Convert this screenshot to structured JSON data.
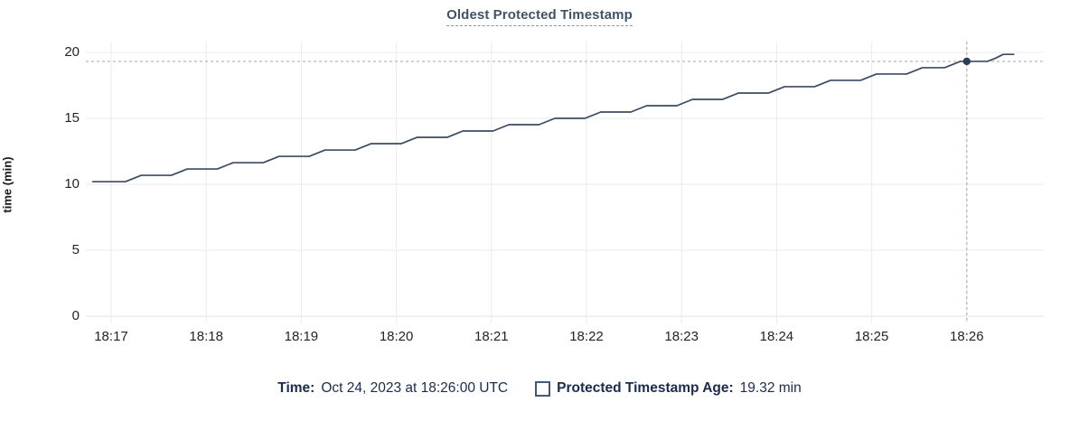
{
  "title": {
    "text": "Oldest Protected Timestamp"
  },
  "colors": {
    "title": "#415368",
    "line": "#3c4a63",
    "dot": "#2e3c55",
    "crosshair": "#a3b5bf",
    "grid": "#ebebeb",
    "axis": "#e2e2e2",
    "tick_text": "#242424",
    "legend_text": "#1b2b4c",
    "swatch_border": "#475872"
  },
  "y_axis": {
    "label": "time (min)",
    "ticks": [
      0,
      5,
      10,
      15,
      20
    ]
  },
  "x_axis": {
    "tick_labels": [
      "18:17",
      "18:18",
      "18:19",
      "18:20",
      "18:21",
      "18:22",
      "18:23",
      "18:24",
      "18:25",
      "18:26"
    ]
  },
  "tooltip": {
    "time_label": "Time:",
    "time_value": "Oct 24, 2023 at 18:26:00 UTC",
    "series_label": "Protected Timestamp Age:",
    "series_value": "19.32 min"
  },
  "chart_data": {
    "type": "line",
    "title": "Oldest Protected Timestamp",
    "ylabel": "time (min)",
    "ylim": [
      0,
      20
    ],
    "y_ticks": [
      0,
      5,
      10,
      15,
      20
    ],
    "x_tick_labels": [
      "18:17",
      "18:18",
      "18:19",
      "18:20",
      "18:21",
      "18:22",
      "18:23",
      "18:24",
      "18:25",
      "18:26"
    ],
    "x_unit": "seconds relative to 18:17:00",
    "x_tick_seconds": [
      0,
      60,
      120,
      180,
      240,
      300,
      360,
      420,
      480,
      540
    ],
    "xlim": [
      -16,
      589
    ],
    "grid": true,
    "legend_position": "bottom",
    "series": [
      {
        "name": "Protected Timestamp Age",
        "unit": "min",
        "points": [
          [
            -12,
            10.2
          ],
          [
            9,
            10.2
          ],
          [
            19,
            10.68
          ],
          [
            38,
            10.68
          ],
          [
            48,
            11.16
          ],
          [
            67,
            11.16
          ],
          [
            77,
            11.64
          ],
          [
            96,
            11.64
          ],
          [
            106,
            12.12
          ],
          [
            125,
            12.12
          ],
          [
            135,
            12.6
          ],
          [
            154,
            12.6
          ],
          [
            164,
            13.08
          ],
          [
            183,
            13.08
          ],
          [
            193,
            13.56
          ],
          [
            212,
            13.56
          ],
          [
            222,
            14.04
          ],
          [
            241,
            14.04
          ],
          [
            251,
            14.52
          ],
          [
            270,
            14.52
          ],
          [
            280,
            15.0
          ],
          [
            299,
            15.0
          ],
          [
            309,
            15.48
          ],
          [
            328,
            15.48
          ],
          [
            338,
            15.96
          ],
          [
            357,
            15.96
          ],
          [
            367,
            16.44
          ],
          [
            386,
            16.44
          ],
          [
            396,
            16.92
          ],
          [
            415,
            16.92
          ],
          [
            425,
            17.4
          ],
          [
            444,
            17.4
          ],
          [
            454,
            17.88
          ],
          [
            473,
            17.88
          ],
          [
            483,
            18.36
          ],
          [
            502,
            18.36
          ],
          [
            512,
            18.84
          ],
          [
            526,
            18.84
          ],
          [
            531,
            19.08
          ],
          [
            536,
            19.32
          ],
          [
            553,
            19.32
          ],
          [
            558,
            19.55
          ],
          [
            563,
            19.85
          ],
          [
            570,
            19.85
          ]
        ]
      }
    ],
    "hover_point": {
      "t_seconds": 540,
      "time": "18:26:00",
      "value": 19.32
    }
  }
}
